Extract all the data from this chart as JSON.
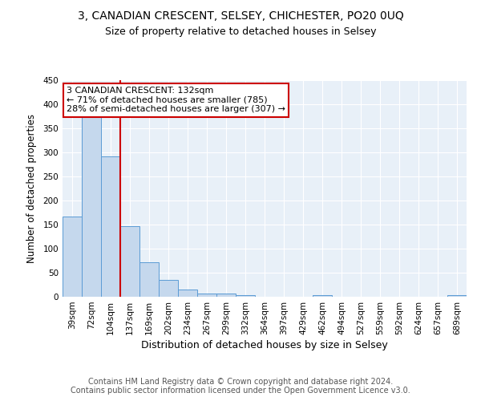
{
  "title": "3, CANADIAN CRESCENT, SELSEY, CHICHESTER, PO20 0UQ",
  "subtitle": "Size of property relative to detached houses in Selsey",
  "xlabel": "Distribution of detached houses by size in Selsey",
  "ylabel": "Number of detached properties",
  "categories": [
    "39sqm",
    "72sqm",
    "104sqm",
    "137sqm",
    "169sqm",
    "202sqm",
    "234sqm",
    "267sqm",
    "299sqm",
    "332sqm",
    "364sqm",
    "397sqm",
    "429sqm",
    "462sqm",
    "494sqm",
    "527sqm",
    "559sqm",
    "592sqm",
    "624sqm",
    "657sqm",
    "689sqm"
  ],
  "values": [
    167,
    375,
    291,
    147,
    71,
    35,
    15,
    7,
    7,
    4,
    0,
    0,
    0,
    4,
    0,
    0,
    0,
    0,
    0,
    0,
    4
  ],
  "bar_color": "#c5d8ed",
  "bar_edge_color": "#5b9bd5",
  "vline_position": 2.5,
  "vline_color": "#cc0000",
  "annotation_text": "3 CANADIAN CRESCENT: 132sqm\n← 71% of detached houses are smaller (785)\n28% of semi-detached houses are larger (307) →",
  "annotation_box_facecolor": "white",
  "annotation_box_edgecolor": "#cc0000",
  "ylim": [
    0,
    450
  ],
  "yticks": [
    0,
    50,
    100,
    150,
    200,
    250,
    300,
    350,
    400,
    450
  ],
  "plot_bg_color": "#e8f0f8",
  "grid_color": "white",
  "footer": "Contains HM Land Registry data © Crown copyright and database right 2024.\nContains public sector information licensed under the Open Government Licence v3.0.",
  "title_fontsize": 10,
  "subtitle_fontsize": 9,
  "xlabel_fontsize": 9,
  "ylabel_fontsize": 8.5,
  "tick_fontsize": 7.5,
  "footer_fontsize": 7,
  "annotation_fontsize": 8
}
